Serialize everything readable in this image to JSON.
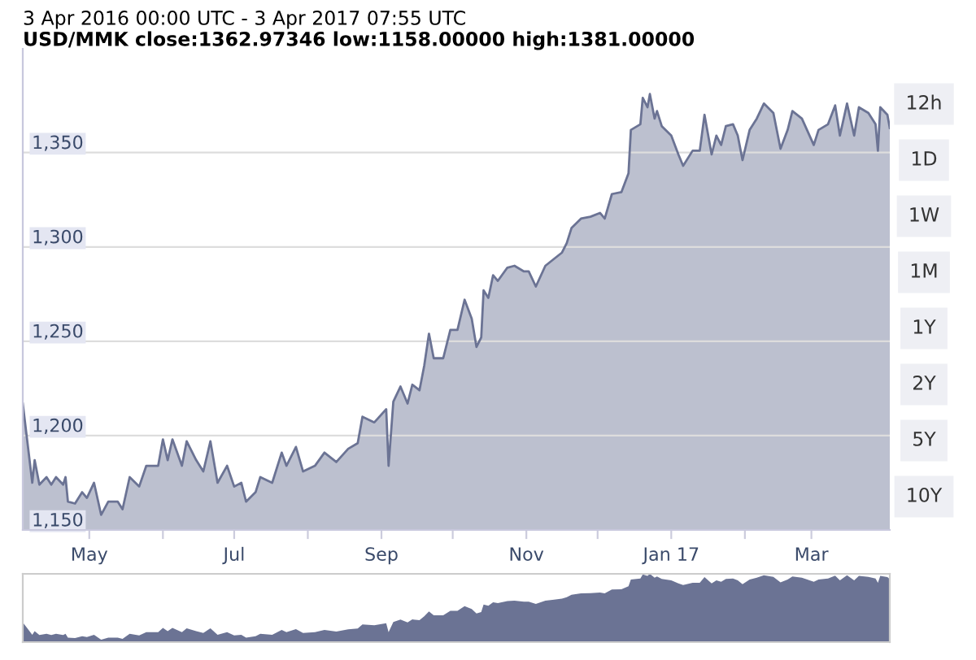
{
  "chart_data": {
    "type": "area",
    "title": "3 Apr 2016 00:00 UTC - 3 Apr 2017 07:55 UTC",
    "subtitle": "USD/MMK close:1362.97346 low:1158.00000 high:1381.00000",
    "annotations": [
      "12h",
      "1D",
      "1W",
      "1M",
      "1Y",
      "2Y",
      "5Y",
      "10Y"
    ],
    "x": [
      "2016-04-03",
      "2016-04-05",
      "2016-04-07",
      "2016-04-08",
      "2016-04-10",
      "2016-04-13",
      "2016-04-15",
      "2016-04-17",
      "2016-04-20",
      "2016-04-21",
      "2016-04-22",
      "2016-04-25",
      "2016-04-28",
      "2016-04-30",
      "2016-05-03",
      "2016-05-06",
      "2016-05-09",
      "2016-05-13",
      "2016-05-15",
      "2016-05-18",
      "2016-05-22",
      "2016-05-25",
      "2016-05-30",
      "2016-06-01",
      "2016-06-03",
      "2016-06-05",
      "2016-06-09",
      "2016-06-11",
      "2016-06-15",
      "2016-06-18",
      "2016-06-21",
      "2016-06-24",
      "2016-06-28",
      "2016-07-01",
      "2016-07-04",
      "2016-07-06",
      "2016-07-10",
      "2016-07-12",
      "2016-07-17",
      "2016-07-21",
      "2016-07-23",
      "2016-07-27",
      "2016-07-30",
      "2016-08-04",
      "2016-08-08",
      "2016-08-13",
      "2016-08-18",
      "2016-08-22",
      "2016-08-24",
      "2016-08-29",
      "2016-09-03",
      "2016-09-04",
      "2016-09-06",
      "2016-09-09",
      "2016-09-12",
      "2016-09-14",
      "2016-09-17",
      "2016-09-19",
      "2016-09-21",
      "2016-09-23",
      "2016-09-27",
      "2016-09-30",
      "2016-10-03",
      "2016-10-06",
      "2016-10-09",
      "2016-10-11",
      "2016-10-13",
      "2016-10-14",
      "2016-10-16",
      "2016-10-18",
      "2016-10-20",
      "2016-10-24",
      "2016-10-27",
      "2016-10-31",
      "2016-11-02",
      "2016-11-05",
      "2016-11-09",
      "2016-11-12",
      "2016-11-16",
      "2016-11-18",
      "2016-11-20",
      "2016-11-24",
      "2016-11-28",
      "2016-12-02",
      "2016-12-04",
      "2016-12-07",
      "2016-12-11",
      "2016-12-14",
      "2016-12-15",
      "2016-12-19",
      "2016-12-20",
      "2016-12-22",
      "2016-12-23",
      "2016-12-25",
      "2016-12-26",
      "2016-12-28",
      "2017-01-01",
      "2017-01-04",
      "2017-01-06",
      "2017-01-10",
      "2017-01-13",
      "2017-01-15",
      "2017-01-18",
      "2017-01-20",
      "2017-01-22",
      "2017-01-24",
      "2017-01-27",
      "2017-01-29",
      "2017-01-31",
      "2017-02-03",
      "2017-02-06",
      "2017-02-09",
      "2017-02-13",
      "2017-02-16",
      "2017-02-19",
      "2017-02-21",
      "2017-02-25",
      "2017-03-02",
      "2017-03-04",
      "2017-03-08",
      "2017-03-11",
      "2017-03-13",
      "2017-03-16",
      "2017-03-19",
      "2017-03-21",
      "2017-03-25",
      "2017-03-28",
      "2017-03-29",
      "2017-03-30",
      "2017-04-02",
      "2017-04-03"
    ],
    "series": [
      {
        "color": "#6b7394",
        "values": [
          1217,
          1196,
          1175,
          1187,
          1174,
          1178,
          1174,
          1178,
          1174,
          1178,
          1165,
          1164,
          1170,
          1167,
          1175,
          1158,
          1165,
          1165,
          1161,
          1178,
          1173,
          1184,
          1184,
          1198,
          1187,
          1198,
          1184,
          1197,
          1187,
          1181,
          1197,
          1175,
          1184,
          1173,
          1175,
          1165,
          1170,
          1178,
          1175,
          1191,
          1184,
          1194,
          1181,
          1184,
          1191,
          1186,
          1193,
          1196,
          1210,
          1207,
          1214,
          1184,
          1218,
          1226,
          1217,
          1227,
          1224,
          1237,
          1254,
          1241,
          1241,
          1256,
          1256,
          1272,
          1262,
          1247,
          1252,
          1277,
          1273,
          1285,
          1282,
          1289,
          1290,
          1287,
          1287,
          1279,
          1290,
          1293,
          1297,
          1302,
          1310,
          1315,
          1316,
          1318,
          1315,
          1328,
          1329,
          1339,
          1362,
          1365,
          1379,
          1374,
          1381,
          1368,
          1372,
          1364,
          1359,
          1349,
          1343,
          1351,
          1351,
          1370,
          1349,
          1359,
          1354,
          1364,
          1365,
          1359,
          1346,
          1362,
          1368,
          1376,
          1371,
          1352,
          1362,
          1372,
          1368,
          1354,
          1362,
          1365,
          1375,
          1359,
          1376,
          1359,
          1374,
          1371,
          1365,
          1351,
          1374,
          1370,
          1363
        ]
      }
    ],
    "xlim": [
      "2016-04-03",
      "2017-04-03"
    ],
    "xticks": [
      {
        "value": "2016-05-01",
        "label": "May"
      },
      {
        "value": "2016-06-01",
        "label": null
      },
      {
        "value": "2016-07-01",
        "label": "Jul"
      },
      {
        "value": "2016-08-01",
        "label": null
      },
      {
        "value": "2016-09-01",
        "label": "Sep"
      },
      {
        "value": "2016-10-01",
        "label": null
      },
      {
        "value": "2016-11-01",
        "label": "Nov"
      },
      {
        "value": "2016-12-01",
        "label": null
      },
      {
        "value": "2017-01-01",
        "label": "Jan 17"
      },
      {
        "value": "2017-02-01",
        "label": null
      },
      {
        "value": "2017-03-01",
        "label": "Mar"
      }
    ],
    "ylim": [
      1150,
      1405
    ],
    "yticks": [
      {
        "value": 1150,
        "label": "1,150"
      },
      {
        "value": 1200,
        "label": "1,200"
      },
      {
        "value": 1250,
        "label": "1,250"
      },
      {
        "value": 1300,
        "label": "1,300"
      },
      {
        "value": 1350,
        "label": "1,350"
      }
    ],
    "grid": "y",
    "legend": false
  }
}
